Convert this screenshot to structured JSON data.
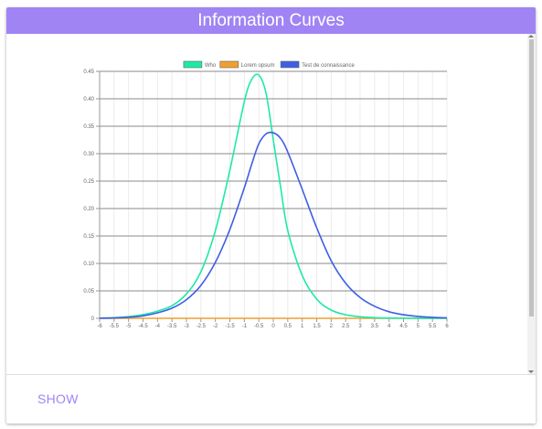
{
  "header": {
    "title": "Information Curves"
  },
  "footer": {
    "show_label": "SHOW"
  },
  "colors": {
    "header_bg": "#a084f4",
    "accent": "#a084f4"
  },
  "chart_data": {
    "type": "line",
    "legend_position": "top-center",
    "grid": true,
    "xlim": [
      -6,
      6
    ],
    "ylim": [
      0,
      0.45
    ],
    "x_ticks": [
      "-6",
      "-5.5",
      "-5",
      "-4.5",
      "-4",
      "-3.5",
      "-3",
      "-2.5",
      "-2",
      "-1.5",
      "-1",
      "-0.5",
      "0",
      "0.5",
      "1",
      "1.5",
      "2",
      "2.5",
      "3",
      "3.5",
      "4",
      "4.5",
      "5",
      "5.5",
      "6"
    ],
    "y_ticks": [
      "0",
      "0.05",
      "0.10",
      "0.15",
      "0.20",
      "0.25",
      "0.30",
      "0.35",
      "0.40",
      "0.45"
    ],
    "x": [
      -6,
      -5.5,
      -5,
      -4.5,
      -4,
      -3.5,
      -3,
      -2.5,
      -2,
      -1.5,
      -1,
      -0.75,
      -0.5,
      -0.25,
      0,
      0.25,
      0.5,
      1,
      1.5,
      2,
      2.5,
      3,
      3.5,
      4,
      4.5,
      5,
      5.5,
      6
    ],
    "series": [
      {
        "name": "Who",
        "color": "#1de9a7",
        "values": [
          0.0005,
          0.0012,
          0.003,
          0.0068,
          0.0132,
          0.023,
          0.0445,
          0.085,
          0.16,
          0.27,
          0.395,
          0.435,
          0.443,
          0.41,
          0.325,
          0.24,
          0.16,
          0.078,
          0.035,
          0.015,
          0.0065,
          0.0028,
          0.0012,
          0.0005,
          0.0002,
          0.0001,
          0,
          0
        ]
      },
      {
        "name": "Lorem opsum",
        "color": "#f0a030",
        "values": [
          0,
          0,
          0,
          0,
          0,
          0,
          0,
          0,
          0,
          0,
          0,
          0,
          0,
          0,
          0,
          0,
          0,
          0,
          0,
          0,
          0,
          0,
          0,
          0,
          0,
          0,
          0,
          0
        ]
      },
      {
        "name": "Test de connaissance",
        "color": "#3f5ee3",
        "values": [
          0.0003,
          0.0008,
          0.002,
          0.0045,
          0.01,
          0.0185,
          0.034,
          0.06,
          0.102,
          0.162,
          0.238,
          0.28,
          0.318,
          0.336,
          0.338,
          0.328,
          0.303,
          0.235,
          0.165,
          0.105,
          0.064,
          0.038,
          0.022,
          0.012,
          0.0065,
          0.0035,
          0.0018,
          0.0009
        ]
      }
    ]
  }
}
